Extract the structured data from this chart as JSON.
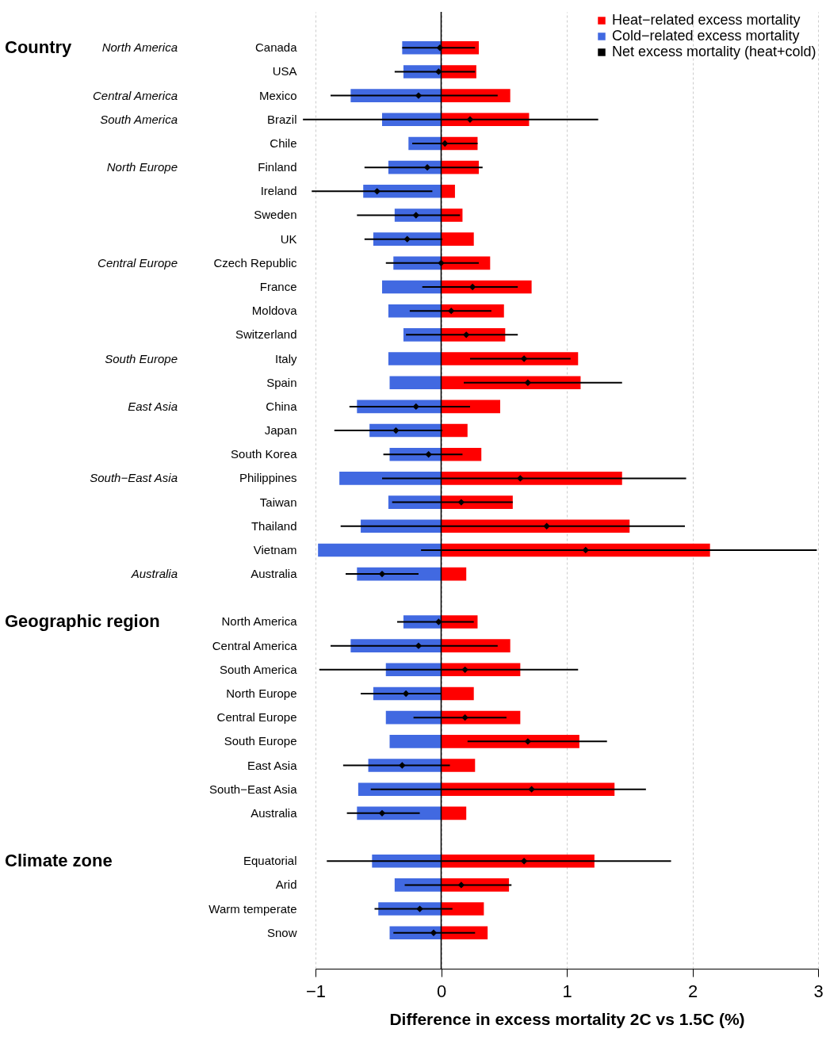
{
  "chart_data": {
    "type": "bar",
    "orientation": "horizontal",
    "xlabel": "Difference in excess mortality 2C vs 1.5C (%)",
    "categories": [
      "Canada",
      "USA",
      "Mexico",
      "Brazil",
      "Chile",
      "Finland",
      "Ireland",
      "Sweden",
      "UK",
      "Czech Republic",
      "France",
      "Moldova",
      "Switzerland",
      "Italy",
      "Spain",
      "China",
      "Japan",
      "South Korea",
      "Philippines",
      "Taiwan",
      "Thailand",
      "Vietnam",
      "Australia",
      null,
      "North America",
      "Central America",
      "South America",
      "North Europe",
      "Central Europe",
      "South Europe",
      "East Asia",
      "South−East Asia",
      "Australia",
      null,
      "Equatorial",
      "Arid",
      "Warm temperate",
      "Snow"
    ],
    "series": [
      {
        "name": "Heat−related excess mortality",
        "type": "bar",
        "color": "#ff0000",
        "values": [
          0.3,
          0.28,
          0.55,
          0.7,
          0.29,
          0.3,
          0.11,
          0.17,
          0.26,
          0.39,
          0.72,
          0.5,
          0.51,
          1.09,
          1.11,
          0.47,
          0.21,
          0.32,
          1.44,
          0.57,
          1.5,
          2.14,
          0.2,
          null,
          0.29,
          0.55,
          0.63,
          0.26,
          0.63,
          1.1,
          0.27,
          1.38,
          0.2,
          null,
          1.22,
          0.54,
          0.34,
          0.37
        ]
      },
      {
        "name": "Cold−related excess mortality",
        "type": "bar",
        "color": "#4169e1",
        "values": [
          -0.31,
          -0.3,
          -0.72,
          -0.47,
          -0.26,
          -0.42,
          -0.62,
          -0.37,
          -0.54,
          -0.38,
          -0.47,
          -0.42,
          -0.3,
          -0.42,
          -0.41,
          -0.67,
          -0.57,
          -0.41,
          -0.81,
          -0.42,
          -0.64,
          -0.98,
          -0.67,
          null,
          -0.3,
          -0.72,
          -0.44,
          -0.54,
          -0.44,
          -0.41,
          -0.58,
          -0.66,
          -0.67,
          null,
          -0.55,
          -0.37,
          -0.5,
          -0.41
        ]
      },
      {
        "name": "Net excess mortality (heat+cold)",
        "type": "scatter",
        "color": "#000000",
        "values": [
          -0.01,
          -0.02,
          -0.18,
          0.23,
          0.03,
          -0.11,
          -0.51,
          -0.2,
          -0.27,
          0.0,
          0.25,
          0.08,
          0.2,
          0.66,
          0.69,
          -0.2,
          -0.36,
          -0.1,
          0.63,
          0.16,
          0.84,
          1.15,
          -0.47,
          null,
          -0.02,
          -0.18,
          0.19,
          -0.28,
          0.19,
          0.69,
          -0.31,
          0.72,
          -0.47,
          null,
          0.66,
          0.16,
          -0.17,
          -0.06
        ],
        "errors": [
          [
            -0.31,
            0.27
          ],
          [
            -0.37,
            0.27
          ],
          [
            -0.88,
            0.45
          ],
          [
            -1.1,
            1.25
          ],
          [
            -0.23,
            0.29
          ],
          [
            -0.61,
            0.33
          ],
          [
            -1.03,
            -0.07
          ],
          [
            -0.67,
            0.15
          ],
          [
            -0.61,
            0.01
          ],
          [
            -0.44,
            0.3
          ],
          [
            -0.15,
            0.61
          ],
          [
            -0.25,
            0.4
          ],
          [
            -0.28,
            0.61
          ],
          [
            0.23,
            1.03
          ],
          [
            0.18,
            1.44
          ],
          [
            -0.73,
            0.23
          ],
          [
            -0.85,
            0.01
          ],
          [
            -0.46,
            0.17
          ],
          [
            -0.47,
            1.95
          ],
          [
            -0.39,
            0.57
          ],
          [
            -0.8,
            1.94
          ],
          [
            -0.16,
            2.99
          ],
          [
            -0.76,
            -0.18
          ],
          null,
          [
            -0.35,
            0.26
          ],
          [
            -0.88,
            0.45
          ],
          [
            -0.97,
            1.09
          ],
          [
            -0.64,
            0.0
          ],
          [
            -0.22,
            0.52
          ],
          [
            0.21,
            1.32
          ],
          [
            -0.78,
            0.07
          ],
          [
            -0.56,
            1.63
          ],
          [
            -0.75,
            -0.17
          ],
          null,
          [
            -0.91,
            1.83
          ],
          [
            -0.29,
            0.56
          ],
          [
            -0.53,
            0.09
          ],
          [
            -0.38,
            0.27
          ]
        ]
      }
    ],
    "y2_categories": [
      "North America",
      null,
      "Central America",
      "South America",
      null,
      "North Europe",
      null,
      null,
      null,
      "Central Europe",
      null,
      null,
      null,
      "South Europe",
      null,
      "East Asia",
      null,
      null,
      "South−East Asia",
      null,
      null,
      null,
      "Australia",
      null,
      null,
      null,
      null,
      null,
      null,
      null,
      null,
      null,
      null,
      null,
      null,
      null,
      null,
      null
    ],
    "stacked": true,
    "marker": "diamond",
    "xlim": [
      -1,
      3
    ],
    "xticks": [
      -1,
      0,
      1,
      2,
      3
    ],
    "grid": "x",
    "legend": "top right",
    "ref_lines": [
      {
        "axis": "x",
        "value": 0,
        "color": "#000000"
      }
    ],
    "annotations": [
      "Country",
      "Geographic region",
      "Climate zone"
    ]
  }
}
